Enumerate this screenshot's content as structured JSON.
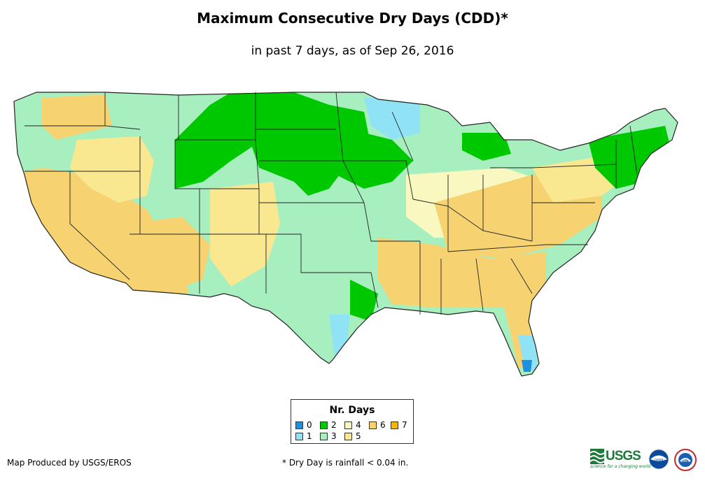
{
  "title": "Maximum Consecutive Dry Days (CDD)*",
  "subtitle": "in past 7 days, as of Sep 26, 2016",
  "legend": {
    "title": "Nr. Days",
    "items": [
      {
        "label": "0",
        "color": "#1e90e0"
      },
      {
        "label": "1",
        "color": "#8fe3f5"
      },
      {
        "label": "2",
        "color": "#00c800"
      },
      {
        "label": "3",
        "color": "#a8efc0"
      },
      {
        "label": "4",
        "color": "#f8f8c0"
      },
      {
        "label": "5",
        "color": "#fae890"
      },
      {
        "label": "6",
        "color": "#f6d370"
      },
      {
        "label": "7",
        "color": "#f7b500"
      }
    ]
  },
  "footer": {
    "producer": "Map Produced by USGS/EROS",
    "note": "* Dry Day is rainfall < 0.04 in."
  },
  "logos": {
    "usgs_text": "USGS",
    "usgs_tagline": "science for a changing world",
    "noaa_text": "noaa",
    "nws_text": "NWS"
  },
  "colors": {
    "state_border": "#222222",
    "day0": "#1e90e0",
    "day1": "#8fe3f5",
    "day2": "#00c800",
    "day3": "#a8efc0",
    "day4": "#f8f8c0",
    "day5": "#fae890",
    "day6": "#f6d370",
    "day7": "#f7b500",
    "usgs_green": "#1d7a3a",
    "noaa_blue": "#0a4a9a"
  }
}
